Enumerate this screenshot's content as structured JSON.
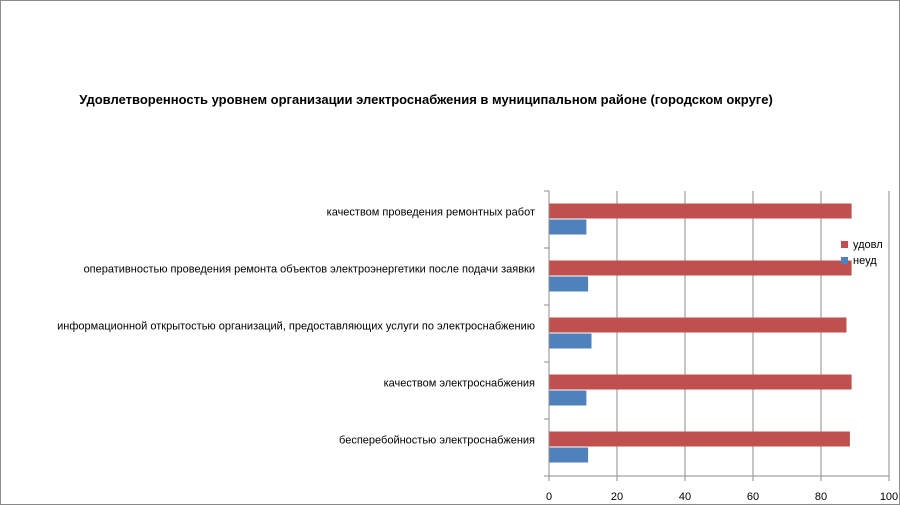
{
  "chart_data": {
    "type": "bar",
    "orientation": "horizontal",
    "title": "Удовлетворенность уровнем организации электроснабжения в муниципальном районе (городском округе)",
    "categories": [
      "качеством проведения ремонтных работ",
      "оперативностью проведения ремонта объектов электроэнергетики после подачи заявки",
      "информационной открытостью организаций, предоставляющих услуги по электроснабжению",
      "качеством электроснабжения",
      "бесперебойностью электроснабжения"
    ],
    "series": [
      {
        "name": "удовл",
        "color": "#c0504d",
        "values": [
          89,
          89,
          87.5,
          89,
          88.5
        ]
      },
      {
        "name": "неуд",
        "color": "#4f81bd",
        "values": [
          11,
          11.5,
          12.5,
          11,
          11.5
        ]
      }
    ],
    "xlim": [
      0,
      100
    ],
    "ticks": [
      0,
      20,
      40,
      60,
      80,
      100
    ],
    "grid": true,
    "legend_position": "right"
  }
}
